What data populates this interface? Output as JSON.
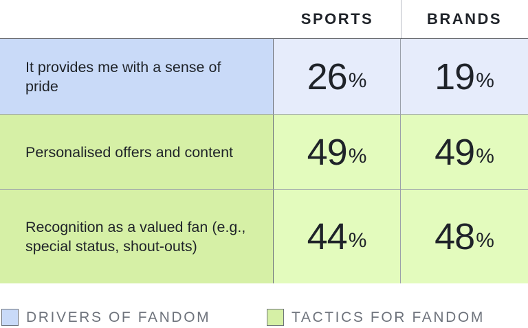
{
  "chart_data": {
    "type": "table",
    "columns": [
      "SPORTS",
      "BRANDS"
    ],
    "rows": [
      {
        "label": "It provides me with a sense of pride",
        "group": "drivers",
        "values": [
          26,
          19
        ]
      },
      {
        "label": "Personalised offers and content",
        "group": "tactics",
        "values": [
          49,
          49
        ]
      },
      {
        "label": "Recognition as a valued fan (e.g., special status, shout-outs)",
        "group": "tactics",
        "values": [
          44,
          48
        ]
      }
    ],
    "unit": "%",
    "legend": [
      {
        "key": "drivers",
        "label": "DRIVERS OF FANDOM",
        "color": "#c9daf8"
      },
      {
        "key": "tactics",
        "label": "TACTICS FOR FANDOM",
        "color": "#d6f0a6"
      }
    ]
  }
}
